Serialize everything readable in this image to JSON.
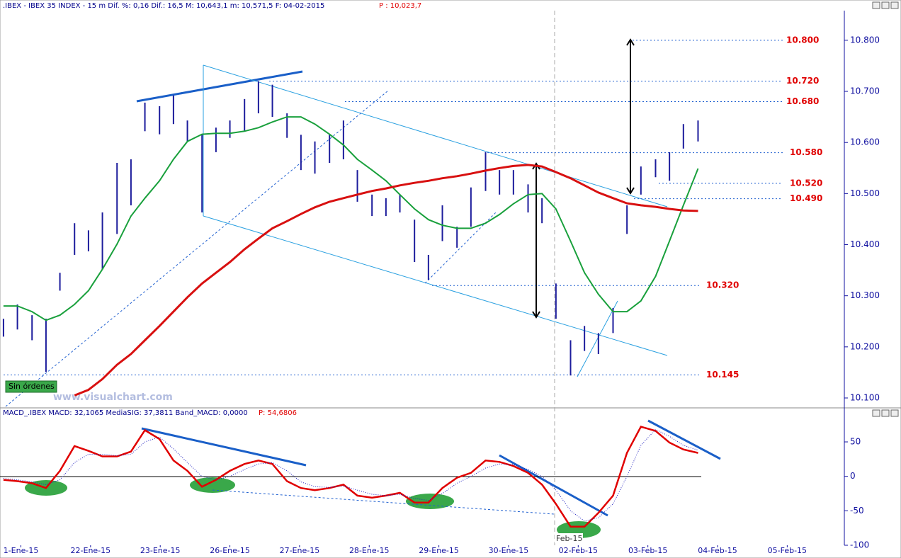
{
  "chart_data": [
    {
      "type": "ohlc",
      "title": ".IBEX - IBEX 35 INDEX -  15 m Dif. %: 0,16 Dif.: 16,5 M: 10,643,1 m: 10,571,5 F: 04-02-2015",
      "title_price": "P : 10,023,7",
      "x": [
        -0.25,
        -0.05,
        0.16,
        0.36,
        0.56,
        0.77,
        0.97,
        1.17,
        1.38,
        1.58,
        1.78,
        1.99,
        2.19,
        2.39,
        2.6,
        2.8,
        3.0,
        3.21,
        3.41,
        3.61,
        3.82,
        4.02,
        4.22,
        4.43,
        4.63,
        4.83,
        5.04,
        5.24,
        5.44,
        5.65,
        5.85,
        6.05,
        6.26,
        6.46,
        6.67,
        6.87,
        7.07,
        7.28,
        7.48,
        7.68,
        7.89,
        8.09,
        8.29,
        8.5,
        8.7,
        8.9,
        9.11,
        9.31,
        9.51,
        9.72
      ],
      "high": [
        10255,
        10283,
        10262,
        10255,
        10345,
        10442,
        10428,
        10463,
        10560,
        10567,
        10678,
        10671,
        10692,
        10643,
        10615,
        10629,
        10643,
        10685,
        10720,
        10713,
        10657,
        10615,
        10602,
        10615,
        10643,
        10546,
        10498,
        10491,
        10498,
        10449,
        10380,
        10477,
        10435,
        10512,
        10581,
        10546,
        10546,
        10518,
        10491,
        10324,
        10213,
        10241,
        10227,
        10276,
        10477,
        10553,
        10567,
        10581,
        10636,
        10643
      ],
      "low": [
        10220,
        10234,
        10213,
        10151,
        10310,
        10380,
        10387,
        10352,
        10421,
        10477,
        10622,
        10616,
        10636,
        10602,
        10463,
        10581,
        10609,
        10622,
        10657,
        10650,
        10609,
        10546,
        10539,
        10560,
        10567,
        10484,
        10456,
        10456,
        10463,
        10366,
        10331,
        10407,
        10394,
        10435,
        10505,
        10498,
        10498,
        10463,
        10442,
        10255,
        10144,
        10192,
        10186,
        10227,
        10421,
        10498,
        10532,
        10525,
        10588,
        10602
      ],
      "color": "#1c1c9c",
      "overlays": [
        {
          "color": "#19a03c",
          "values": [
            10280,
            10280,
            10269,
            10252,
            10262,
            10283,
            10310,
            10352,
            10401,
            10456,
            10491,
            10525,
            10567,
            10602,
            10616,
            10618,
            10618,
            10622,
            10629,
            10640,
            10650,
            10650,
            10636,
            10616,
            10595,
            10567,
            10546,
            10525,
            10498,
            10470,
            10449,
            10438,
            10432,
            10432,
            10442,
            10459,
            10480,
            10498,
            10500,
            10470,
            10407,
            10345,
            10303,
            10269,
            10269,
            10290,
            10338,
            10407,
            10477,
            10549
          ]
        },
        {
          "color": "#d81010",
          "values": [
            null,
            null,
            null,
            null,
            null,
            10105,
            10116,
            10137,
            10165,
            10186,
            10213,
            10241,
            10269,
            10297,
            10324,
            10345,
            10366,
            10391,
            10412,
            10432,
            10446,
            10460,
            10473,
            10484,
            10491,
            10498,
            10505,
            10510,
            10516,
            10521,
            10525,
            10530,
            10534,
            10539,
            10545,
            10550,
            10554,
            10556,
            10553,
            10542,
            10530,
            10516,
            10502,
            10491,
            10481,
            10477,
            10474,
            10470,
            10467,
            10466
          ]
        }
      ],
      "xlim": [
        -0.3,
        11.82
      ],
      "ylim": [
        10082,
        10858
      ],
      "yticks": [
        {
          "value": 10100,
          "label": "10.100"
        },
        {
          "value": 10200,
          "label": "10.200"
        },
        {
          "value": 10300,
          "label": "10.300"
        },
        {
          "value": 10400,
          "label": "10.400"
        },
        {
          "value": 10500,
          "label": "10.500"
        },
        {
          "value": 10600,
          "label": "10.600"
        },
        {
          "value": 10700,
          "label": "10.700"
        },
        {
          "value": 10800,
          "label": "10.800"
        }
      ],
      "levels": [
        {
          "value": 10800,
          "label": "10.800"
        },
        {
          "value": 10720,
          "label": "10.720"
        },
        {
          "value": 10680,
          "label": "10.680"
        },
        {
          "value": 10580,
          "label": "10.580"
        },
        {
          "value": 10520,
          "label": "10.520"
        },
        {
          "value": 10490,
          "label": "10.490"
        },
        {
          "value": 10320,
          "label": "10.320"
        },
        {
          "value": 10145,
          "label": "10.145"
        }
      ],
      "button": "Sin órdenes",
      "watermark": "www.visualchart.com"
    },
    {
      "type": "macd",
      "title": "MACD_.IBEX MACD: 32,1065 MediaSIG: 37,3811 Band_MACD: 0,0000",
      "title_price": "P: 54,6806",
      "x": [
        -0.25,
        -0.05,
        0.16,
        0.36,
        0.56,
        0.77,
        0.97,
        1.17,
        1.38,
        1.58,
        1.78,
        1.99,
        2.19,
        2.39,
        2.6,
        2.8,
        3.0,
        3.21,
        3.41,
        3.61,
        3.82,
        4.02,
        4.22,
        4.43,
        4.63,
        4.83,
        5.04,
        5.24,
        5.44,
        5.65,
        5.85,
        6.05,
        6.26,
        6.46,
        6.67,
        6.87,
        7.07,
        7.28,
        7.48,
        7.68,
        7.89,
        8.09,
        8.29,
        8.5,
        8.7,
        8.9,
        9.11,
        9.31,
        9.51,
        9.72
      ],
      "series": [
        {
          "color": "#e00000",
          "values": [
            -5,
            -7,
            -10,
            -17,
            8,
            44,
            37,
            29,
            29,
            36,
            67,
            54,
            23,
            8,
            -15,
            -5,
            8,
            18,
            23,
            18,
            -7,
            -17,
            -20,
            -17,
            -12,
            -28,
            -31,
            -28,
            -24,
            -38,
            -38,
            -17,
            -2,
            5,
            23,
            21,
            15,
            5,
            -12,
            -40,
            -73,
            -73,
            -53,
            -28,
            34,
            72,
            66,
            49,
            39,
            34
          ]
        },
        {
          "color": "#2020c0",
          "dash": true,
          "values": [
            -3,
            -5,
            -8,
            -12,
            -5,
            20,
            32,
            32,
            30,
            32,
            50,
            57,
            40,
            20,
            0,
            -5,
            0,
            10,
            18,
            20,
            8,
            -8,
            -15,
            -16,
            -14,
            -20,
            -26,
            -28,
            -26,
            -32,
            -35,
            -25,
            -10,
            0,
            12,
            18,
            17,
            10,
            0,
            -20,
            -50,
            -65,
            -60,
            -40,
            0,
            45,
            68,
            58,
            45,
            38
          ]
        }
      ],
      "xlim": [
        -0.3,
        11.82
      ],
      "ylim": [
        -100,
        86
      ],
      "yticks": [
        50,
        0,
        -50,
        -100
      ],
      "xticks": [
        {
          "value": 0,
          "label": "1-Ene-15"
        },
        {
          "value": 1,
          "label": "22-Ene-15"
        },
        {
          "value": 2,
          "label": "23-Ene-15"
        },
        {
          "value": 3,
          "label": "26-Ene-15"
        },
        {
          "value": 4,
          "label": "27-Ene-15"
        },
        {
          "value": 5,
          "label": "28-Ene-15"
        },
        {
          "value": 6,
          "label": "29-Ene-15"
        },
        {
          "value": 7,
          "label": "30-Ene-15"
        },
        {
          "value": 8,
          "label": "02-Feb-15"
        },
        {
          "value": 9,
          "label": "03-Feb-15"
        },
        {
          "value": 10,
          "label": "04-Feb-15"
        },
        {
          "value": 11,
          "label": "05-Feb-15"
        }
      ],
      "marker": "Feb-15"
    }
  ]
}
